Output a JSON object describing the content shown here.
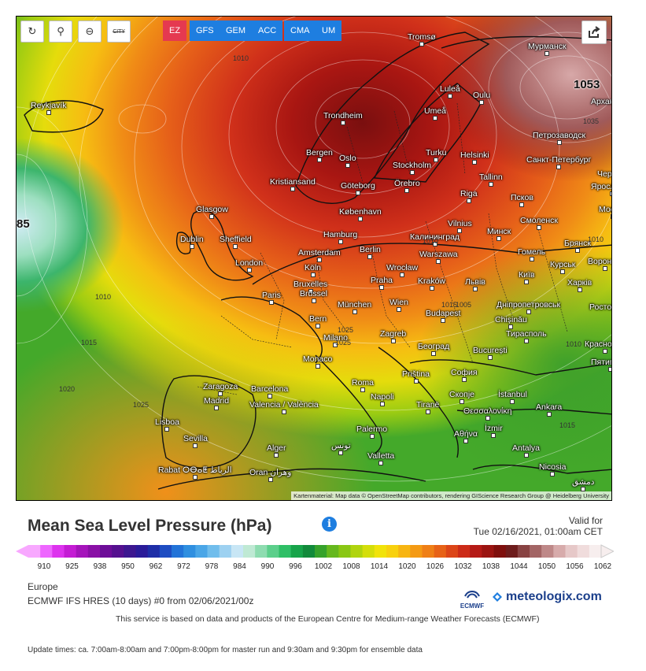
{
  "toolbar": {
    "buttons": [
      {
        "name": "reload-icon",
        "glyph": "↻"
      },
      {
        "name": "location-pin-icon",
        "glyph": "⚲"
      },
      {
        "name": "zoom-out-icon",
        "glyph": "⊖"
      },
      {
        "name": "city-toggle-icon",
        "glyph": "CITY"
      }
    ],
    "models": [
      {
        "label": "EZ",
        "active": true
      },
      {
        "label": "GFS",
        "active": false
      },
      {
        "label": "GEM",
        "active": false
      },
      {
        "label": "ACC",
        "active": false
      },
      {
        "label": "CMA",
        "active": false
      },
      {
        "label": "UM",
        "active": false
      }
    ],
    "share_icon": "share-icon"
  },
  "map": {
    "cities": [
      "Tromsø",
      "Мурманск",
      "Reykjavík",
      "Luleå",
      "Oulu",
      "Архангельск",
      "Trondheim",
      "Umeå",
      "Петрозаводск",
      "Bergen",
      "Oslo",
      "Turku",
      "Helsinki",
      "Санкт-Петербург",
      "Stockholm",
      "Kristiansand",
      "Göteborg",
      "Örebro",
      "Tallinn",
      "Череповец",
      "Ярославль",
      "Riga",
      "Псков",
      "Glasgow",
      "København",
      "Москва",
      "Vilnius",
      "Смоленск",
      "Dublin",
      "Sheffield",
      "Hamburg",
      "Калининград",
      "Минск",
      "Брянск",
      "Amsterdam",
      "Berlin",
      "Warszawa",
      "Гомель",
      "London",
      "Köln",
      "Wrocław",
      "Київ",
      "Курськ",
      "Воронеж",
      "Bruxelles",
      "Brussel",
      "Praha",
      "Kraków",
      "Львів",
      "Харків",
      "Paris",
      "München",
      "Wien",
      "Дніпропетровськ",
      "Ростов-на-Дону",
      "Bern",
      "Budapest",
      "Chișinău",
      "Milano",
      "Zagreb",
      "Тирасполь",
      "Краснодар",
      "Monaco",
      "Београд",
      "București",
      "Пятигорск",
      "Priština",
      "София",
      "Zaragoza",
      "Barcelona",
      "Roma",
      "Скопје",
      "İstanbul",
      "Madrid",
      "Valencia / València",
      "Napoli",
      "Tiranë",
      "Θεσσαλονίκη",
      "Ankara",
      "Lisboa",
      "Sevilla",
      "İzmir",
      "Αθήνα",
      "Palermo",
      "Alger",
      "تونس",
      "Valletta",
      "Antalya",
      "Nicosia",
      "Rabat ⵔⴱⴰⵟ الرباط",
      "Oran وهران",
      "دمشق"
    ],
    "isobar_labels": [
      "1010",
      "1010",
      "1015",
      "1020",
      "1025",
      "1010",
      "1015",
      "1025",
      "1035",
      "1025",
      "1015",
      "1010",
      "1005",
      "1010"
    ],
    "big_values": [
      "1053",
      "85"
    ],
    "attribution": "Kartenmaterial: Map data © OpenStreetMap contributors, rendering GIScience Research Group @ Heidelberg University"
  },
  "header": {
    "title": "Mean Sea Level Pressure (hPa)",
    "info_icon": "i",
    "valid_label": "Valid for",
    "valid_date": "Tue 02/16/2021, 01:00am CET"
  },
  "legend": {
    "ticks": [
      "910",
      "925",
      "938",
      "950",
      "962",
      "972",
      "978",
      "984",
      "990",
      "996",
      "1002",
      "1008",
      "1014",
      "1020",
      "1026",
      "1032",
      "1038",
      "1044",
      "1050",
      "1056",
      "1062"
    ],
    "colors": [
      "#f8a8ff",
      "#ee66ff",
      "#dd33ee",
      "#c41cd4",
      "#a514bb",
      "#8a10a6",
      "#6d0d98",
      "#55108f",
      "#3d1790",
      "#2a1b99",
      "#1e2ea7",
      "#1e4dc2",
      "#2273d8",
      "#2f8fe0",
      "#4aa6e7",
      "#70bdec",
      "#9dd1f1",
      "#c8e6f5",
      "#bfe9d4",
      "#8edcb0",
      "#5ccf8b",
      "#2fbf66",
      "#17a44a",
      "#128a3b",
      "#36a22b",
      "#66b81e",
      "#8ac714",
      "#b0d40e",
      "#d4de0a",
      "#f1e30a",
      "#f8d10e",
      "#f7b512",
      "#f49a14",
      "#ef7f16",
      "#e76217",
      "#dc4518",
      "#cc2b18",
      "#b51a16",
      "#9b1411",
      "#7f0f0d",
      "#6d1c1c",
      "#884343",
      "#a36565",
      "#be8888",
      "#d7abab",
      "#e6c8c8",
      "#f0dcdc",
      "#f7eeee"
    ]
  },
  "footer": {
    "region": "Europe",
    "model_run": "ECMWF IFS HRES  (10 days)  #0 from 02/06/2021/00z",
    "ecmwf_logo": "ECMWF",
    "brand": "meteologix.com",
    "disclaimer": "This service is based on data and products of the European Centre for Medium-range Weather Forecasts  (ECMWF)",
    "update_times": "Update times: ca. 7:00am-8:00am and 7:00pm-8:00pm for master run and 9:30am and 9:30pm for ensemble data"
  },
  "colors": {
    "accent": "#1e7ee0",
    "active_model": "#e53950",
    "brand": "#1b3f8b"
  }
}
